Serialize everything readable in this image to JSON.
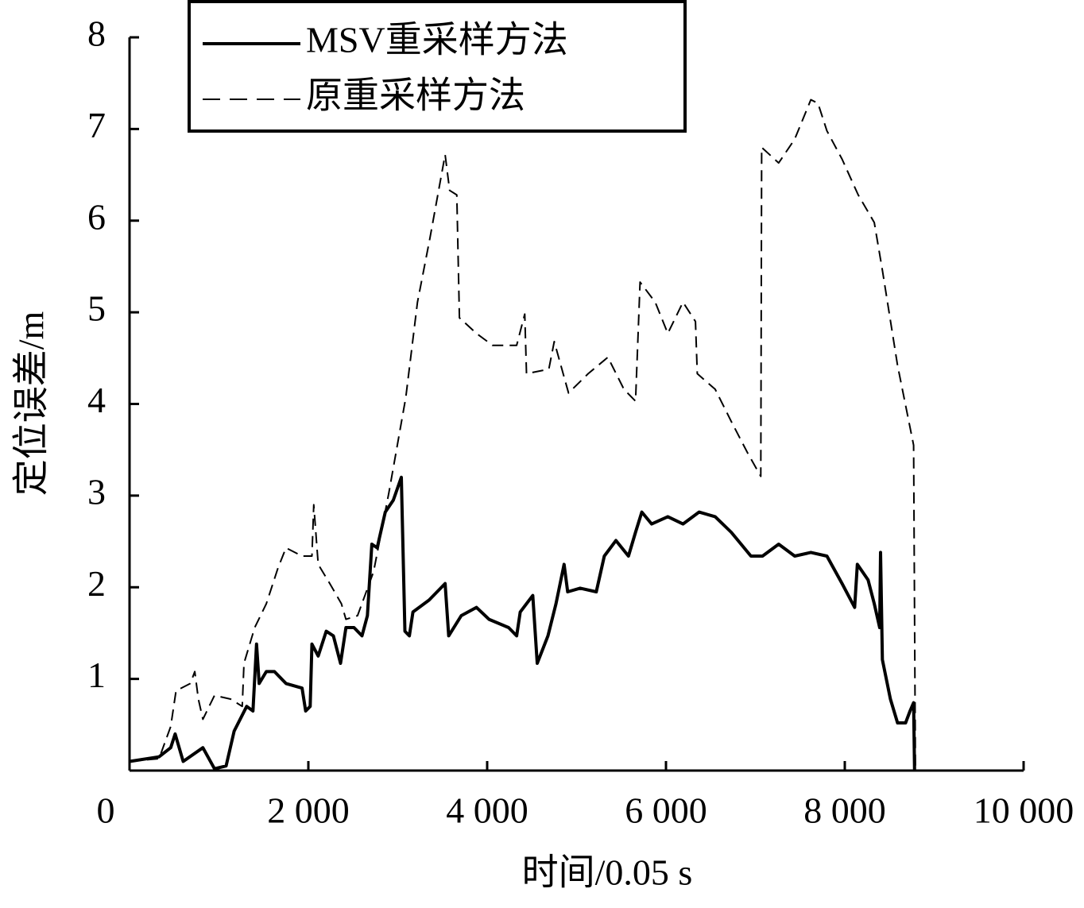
{
  "chart_data": {
    "type": "line",
    "xlabel": "时间/0.05 s",
    "ylabel": "定位误差/m",
    "xlim": [
      0,
      10000
    ],
    "ylim": [
      0,
      8
    ],
    "xticks": [
      0,
      {
        "value": 2000,
        "label": "2 000"
      },
      {
        "value": 4000,
        "label": "4 000"
      },
      {
        "value": 6000,
        "label": "6 000"
      },
      {
        "value": 8000,
        "label": "8 000"
      },
      {
        "value": 10000,
        "label": "10 000"
      }
    ],
    "yticks": [
      1,
      2,
      3,
      4,
      5,
      6,
      7,
      8
    ],
    "legend": "top-left",
    "series": [
      {
        "name": "MSV重采样方法",
        "color": "#000000",
        "style": "solid",
        "x": [
          0,
          330,
          460,
          510,
          600,
          820,
          950,
          1080,
          1170,
          1310,
          1380,
          1420,
          1450,
          1530,
          1620,
          1750,
          1930,
          1970,
          2020,
          2040,
          2110,
          2200,
          2280,
          2360,
          2420,
          2510,
          2600,
          2660,
          2710,
          2770,
          2860,
          2950,
          3040,
          3080,
          3130,
          3170,
          3350,
          3530,
          3570,
          3710,
          3880,
          4020,
          4240,
          4330,
          4370,
          4510,
          4560,
          4680,
          4770,
          4860,
          4900,
          5040,
          5220,
          5310,
          5440,
          5580,
          5660,
          5730,
          5840,
          6020,
          6190,
          6370,
          6550,
          6730,
          6950,
          7080,
          7260,
          7440,
          7620,
          7800,
          7970,
          8110,
          8140,
          8260,
          8330,
          8390,
          8400,
          8420,
          8510,
          8590,
          8680,
          8730,
          8770,
          8780
        ],
        "values": [
          0.1,
          0.15,
          0.25,
          0.4,
          0.1,
          0.25,
          0.02,
          0.05,
          0.43,
          0.7,
          0.65,
          1.38,
          0.95,
          1.08,
          1.08,
          0.95,
          0.9,
          0.65,
          0.7,
          1.38,
          1.25,
          1.52,
          1.47,
          1.17,
          1.56,
          1.56,
          1.47,
          1.69,
          2.47,
          2.43,
          2.82,
          2.95,
          3.2,
          1.52,
          1.47,
          1.73,
          1.86,
          2.04,
          1.47,
          1.69,
          1.78,
          1.65,
          1.56,
          1.47,
          1.73,
          1.91,
          1.17,
          1.47,
          1.82,
          2.25,
          1.95,
          1.99,
          1.95,
          2.34,
          2.51,
          2.34,
          2.6,
          2.82,
          2.69,
          2.77,
          2.69,
          2.82,
          2.77,
          2.6,
          2.34,
          2.34,
          2.47,
          2.34,
          2.38,
          2.34,
          2.04,
          1.78,
          2.25,
          2.08,
          1.82,
          1.56,
          2.38,
          1.21,
          0.78,
          0.52,
          0.52,
          0.65,
          0.74,
          0
        ]
      },
      {
        "name": "原重采样方法",
        "color": "#000000",
        "style": "dashed",
        "x": [
          0,
          330,
          460,
          520,
          680,
          730,
          770,
          820,
          950,
          1130,
          1260,
          1280,
          1400,
          1530,
          1660,
          1750,
          1930,
          2040,
          2060,
          2110,
          2240,
          2370,
          2420,
          2550,
          2730,
          2900,
          3090,
          3220,
          3360,
          3530,
          3580,
          3660,
          3690,
          3880,
          4060,
          4330,
          4420,
          4440,
          4690,
          4750,
          4910,
          5130,
          5350,
          5530,
          5660,
          5710,
          5880,
          6020,
          6190,
          6330,
          6350,
          6550,
          6730,
          6910,
          7060,
          7070,
          7260,
          7440,
          7620,
          7700,
          7800,
          7970,
          8150,
          8330,
          8420,
          8590,
          8770,
          8790
        ],
        "values": [
          0.1,
          0.13,
          0.48,
          0.87,
          0.95,
          1.08,
          0.78,
          0.56,
          0.82,
          0.78,
          0.7,
          1.17,
          1.56,
          1.82,
          2.21,
          2.43,
          2.34,
          2.34,
          2.9,
          2.25,
          2.04,
          1.82,
          1.65,
          1.69,
          2.17,
          3.03,
          4.07,
          5.11,
          5.81,
          6.72,
          6.33,
          6.28,
          4.94,
          4.77,
          4.64,
          4.64,
          4.98,
          4.33,
          4.38,
          4.68,
          4.12,
          4.33,
          4.51,
          4.16,
          4.03,
          5.33,
          5.11,
          4.77,
          5.11,
          4.9,
          4.33,
          4.16,
          3.81,
          3.47,
          3.21,
          6.8,
          6.63,
          6.89,
          7.32,
          7.28,
          6.98,
          6.67,
          6.28,
          5.98,
          5.46,
          4.42,
          3.55,
          0
        ]
      }
    ]
  }
}
